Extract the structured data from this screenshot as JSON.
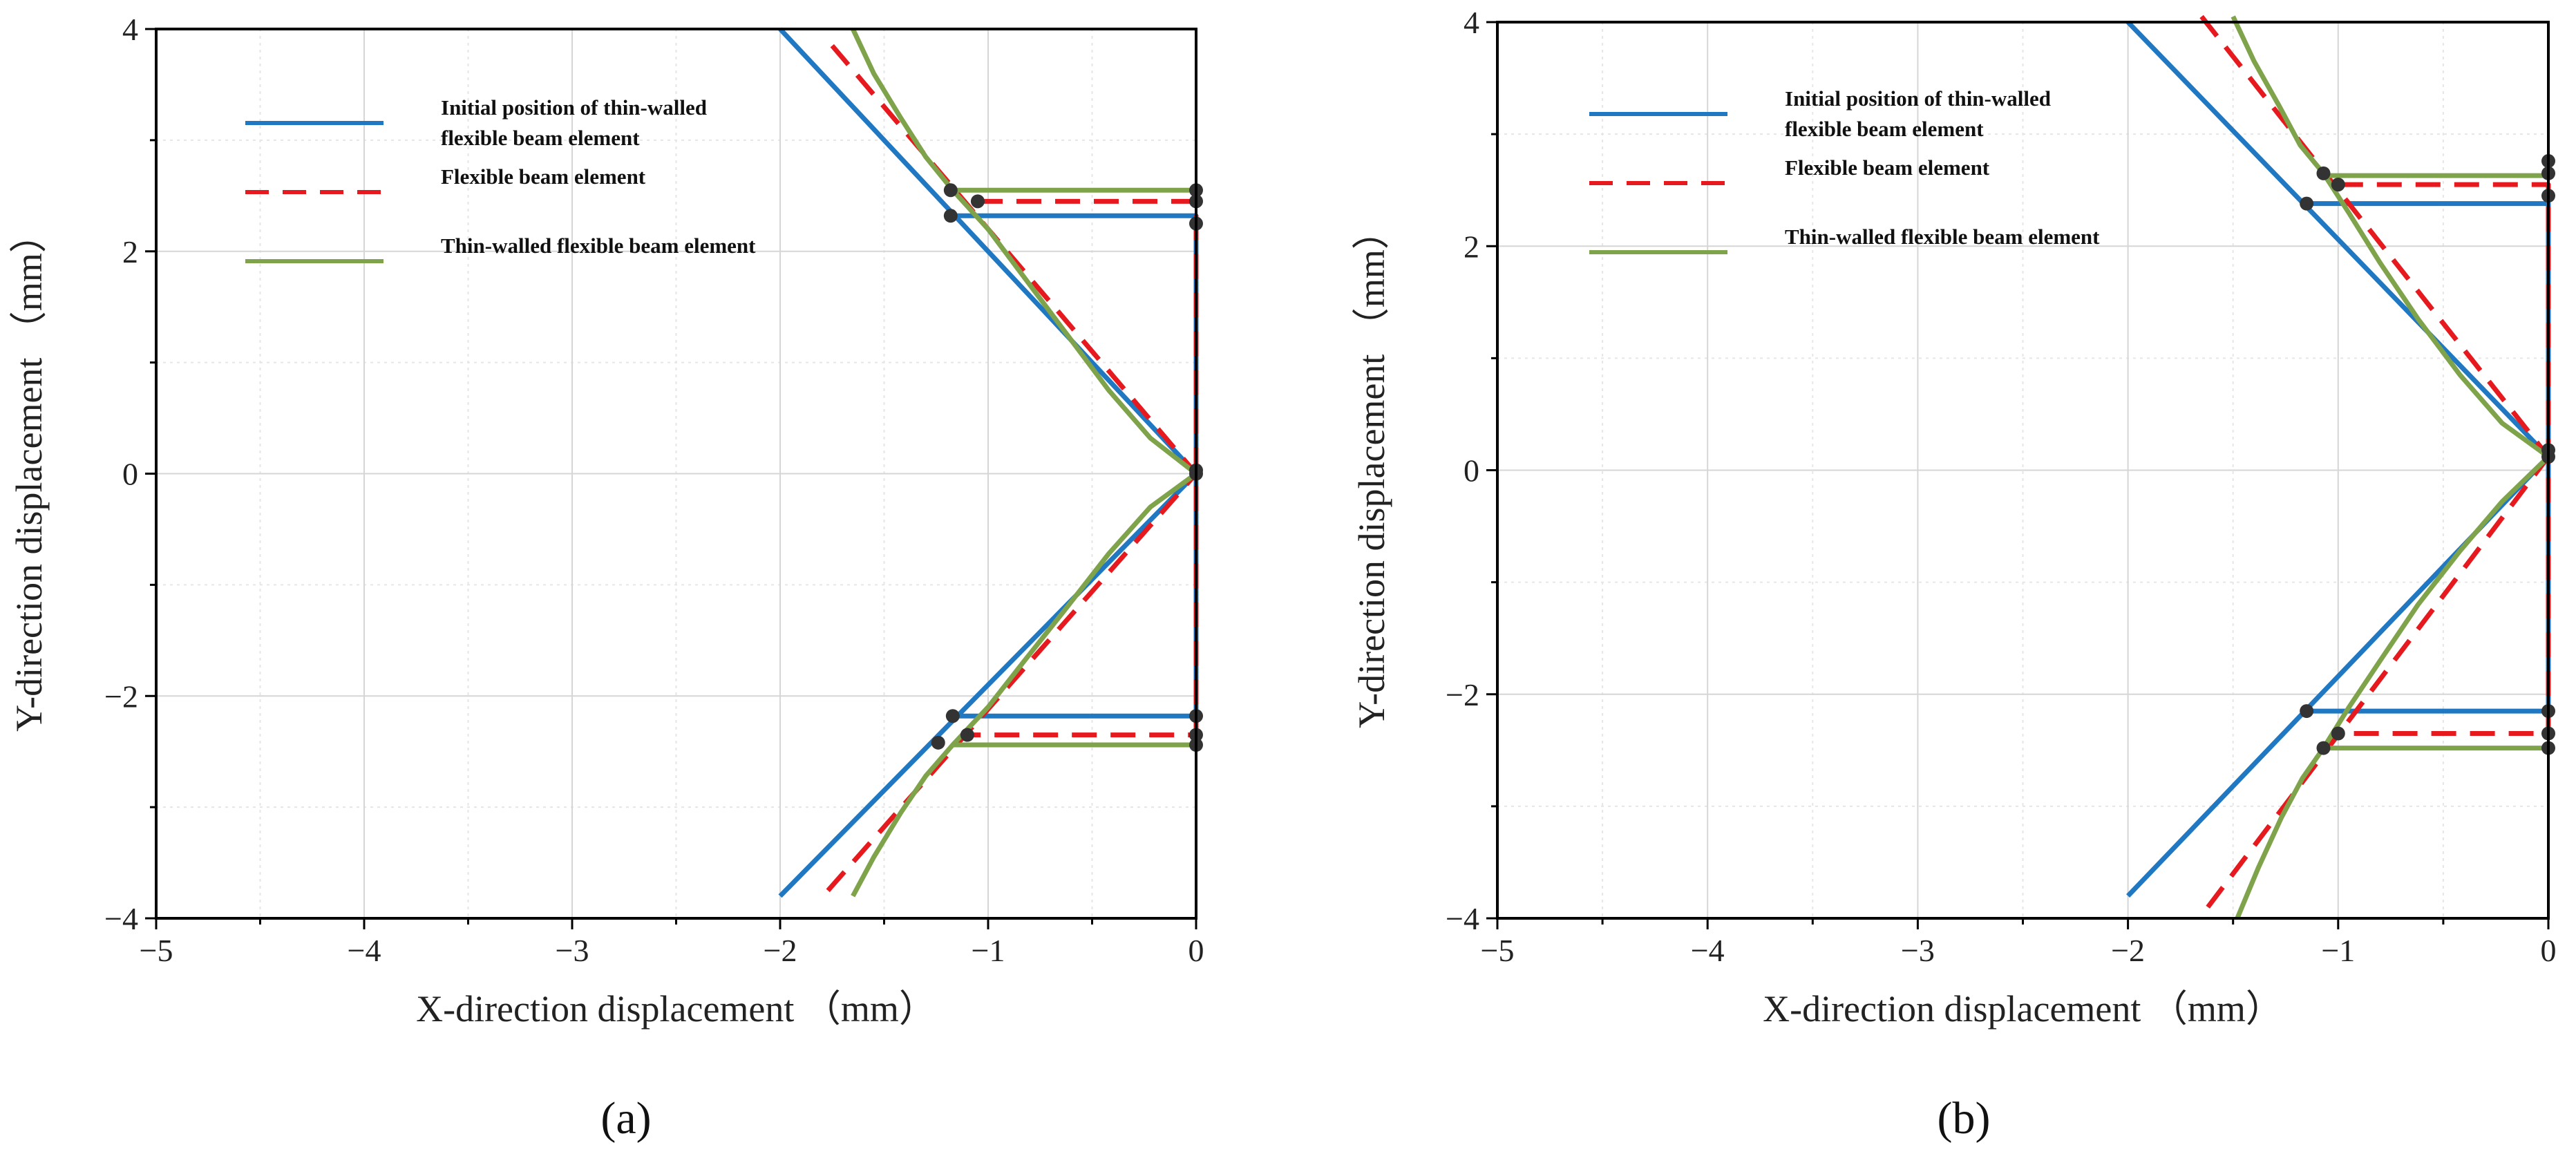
{
  "colors": {
    "initial": "#1f78c1",
    "flexible": "#e5191e",
    "thin_walled": "#7ea34a",
    "node": "#333333",
    "grid": "#d6d6d6",
    "minor_grid": "#e6e6e6",
    "axis": "#000000"
  },
  "chart_data": [
    {
      "type": "line",
      "panel_label": "(a)",
      "xlabel": "X-direction displacement （mm）",
      "ylabel": "Y-direction displacement （mm）",
      "xlim": [
        -5,
        0
      ],
      "ylim": [
        -4,
        4
      ],
      "xticks": [
        -5,
        -4,
        -3,
        -2,
        -1,
        0
      ],
      "yticks": [
        -4,
        -2,
        0,
        2,
        4
      ],
      "xtick_labels": [
        "−5",
        "−4",
        "−3",
        "−2",
        "−1",
        "0"
      ],
      "ytick_labels": [
        "−4",
        "−2",
        "0",
        "2",
        "4"
      ],
      "grid": true,
      "legend_position": "top-left",
      "legend": [
        {
          "key": "initial",
          "lines": [
            "Initial position of thin-walled",
            "flexible beam element"
          ],
          "style": "solid"
        },
        {
          "key": "flexible",
          "lines": [
            "Flexible beam element"
          ],
          "style": "dashed"
        },
        {
          "key": "thin_walled",
          "lines": [
            "Thin-walled flexible beam element"
          ],
          "style": "solid"
        }
      ],
      "series": [
        {
          "name": "Initial position of thin-walled flexible beam element",
          "key": "initial",
          "style": "solid",
          "paths": [
            {
              "x": [
                -2.0,
                0.0
              ],
              "y": [
                4.0,
                0.0
              ]
            },
            {
              "x": [
                -2.0,
                0.0
              ],
              "y": [
                -3.8,
                0.0
              ]
            },
            {
              "x": [
                -1.18,
                0.0,
                0.0,
                -1.18
              ],
              "y": [
                2.32,
                2.32,
                -2.18,
                -2.18
              ]
            }
          ]
        },
        {
          "name": "Flexible beam element",
          "key": "flexible",
          "style": "dashed",
          "paths": [
            {
              "x": [
                -1.75,
                0.0
              ],
              "y": [
                3.85,
                0.0
              ]
            },
            {
              "x": [
                -1.77,
                0.0
              ],
              "y": [
                -3.75,
                0.0
              ]
            },
            {
              "x": [
                -1.05,
                0.0,
                0.0,
                -1.1
              ],
              "y": [
                2.45,
                2.45,
                -2.35,
                -2.35
              ]
            }
          ]
        },
        {
          "name": "Thin-walled flexible beam element",
          "key": "thin_walled",
          "style": "solid",
          "paths": [
            {
              "x": [
                -1.65,
                -1.55,
                -1.42,
                -1.3,
                -1.17,
                -1.0,
                -0.82,
                -0.62,
                -0.42,
                -0.22,
                0.0
              ],
              "y": [
                4.0,
                3.6,
                3.2,
                2.85,
                2.55,
                2.2,
                1.75,
                1.25,
                0.75,
                0.32,
                0.0
              ]
            },
            {
              "x": [
                -1.65,
                -1.55,
                -1.42,
                -1.3,
                -1.17,
                -1.0,
                -0.82,
                -0.62,
                -0.42,
                -0.22,
                0.0
              ],
              "y": [
                -3.8,
                -3.45,
                -3.05,
                -2.72,
                -2.44,
                -2.1,
                -1.67,
                -1.2,
                -0.72,
                -0.3,
                0.0
              ]
            },
            {
              "x": [
                -1.17,
                0.0
              ],
              "y": [
                2.55,
                2.55
              ]
            },
            {
              "x": [
                -1.17,
                0.0
              ],
              "y": [
                -2.44,
                -2.44
              ]
            }
          ]
        }
      ],
      "nodes": {
        "x": [
          -1.18,
          -1.18,
          -1.05,
          -1.1,
          -1.17,
          -1.24,
          0.0,
          0.0,
          0.0,
          0.0,
          0.0,
          0.0,
          0.0,
          0.0
        ],
        "y": [
          2.55,
          2.32,
          2.45,
          -2.35,
          -2.18,
          -2.42,
          2.55,
          2.45,
          2.25,
          0.0,
          -2.18,
          -2.35,
          -2.44,
          0.03
        ]
      }
    },
    {
      "type": "line",
      "panel_label": "(b)",
      "xlabel": "X-direction displacement （mm）",
      "ylabel": "Y-direction displacement （mm）",
      "xlim": [
        -5,
        0
      ],
      "ylim": [
        -4,
        4
      ],
      "xticks": [
        -5,
        -4,
        -3,
        -2,
        -1,
        0
      ],
      "yticks": [
        -4,
        -2,
        0,
        2,
        4
      ],
      "xtick_labels": [
        "−5",
        "−4",
        "−3",
        "−2",
        "−1",
        "0"
      ],
      "ytick_labels": [
        "−4",
        "−2",
        "0",
        "2",
        "4"
      ],
      "grid": true,
      "legend_position": "top-left",
      "legend": [
        {
          "key": "initial",
          "lines": [
            "Initial position of thin-walled",
            "flexible beam element"
          ],
          "style": "solid"
        },
        {
          "key": "flexible",
          "lines": [
            "Flexible beam element"
          ],
          "style": "dashed"
        },
        {
          "key": "thin_walled",
          "lines": [
            "Thin-walled flexible beam element"
          ],
          "style": "solid"
        }
      ],
      "series": [
        {
          "name": "Initial position of thin-walled flexible beam element",
          "key": "initial",
          "style": "solid",
          "paths": [
            {
              "x": [
                -2.0,
                0.0
              ],
              "y": [
                4.0,
                0.12
              ]
            },
            {
              "x": [
                -2.0,
                0.0
              ],
              "y": [
                -3.8,
                0.12
              ]
            },
            {
              "x": [
                -1.15,
                0.0,
                0.0,
                -1.15
              ],
              "y": [
                2.38,
                2.38,
                -2.15,
                -2.15
              ]
            }
          ]
        },
        {
          "name": "Flexible beam element",
          "key": "flexible",
          "style": "dashed",
          "paths": [
            {
              "x": [
                -1.65,
                0.0
              ],
              "y": [
                4.05,
                0.12
              ]
            },
            {
              "x": [
                -1.62,
                0.0
              ],
              "y": [
                -3.9,
                0.12
              ]
            },
            {
              "x": [
                -1.0,
                0.0,
                0.0,
                -1.0
              ],
              "y": [
                2.55,
                2.55,
                -2.35,
                -2.35
              ]
            }
          ]
        },
        {
          "name": "Thin-walled flexible beam element",
          "key": "thin_walled",
          "style": "solid",
          "paths": [
            {
              "x": [
                -1.5,
                -1.4,
                -1.28,
                -1.18,
                -1.07,
                -0.95,
                -0.8,
                -0.62,
                -0.42,
                -0.22,
                0.0
              ],
              "y": [
                4.05,
                3.65,
                3.25,
                2.9,
                2.65,
                2.3,
                1.85,
                1.35,
                0.85,
                0.42,
                0.12
              ]
            },
            {
              "x": [
                -1.48,
                -1.38,
                -1.27,
                -1.17,
                -1.07,
                -0.95,
                -0.8,
                -0.62,
                -0.42,
                -0.22,
                0.0
              ],
              "y": [
                -4.0,
                -3.55,
                -3.1,
                -2.75,
                -2.48,
                -2.12,
                -1.7,
                -1.2,
                -0.72,
                -0.28,
                0.12
              ]
            },
            {
              "x": [
                -1.07,
                0.0
              ],
              "y": [
                2.63,
                2.63
              ]
            },
            {
              "x": [
                -1.07,
                0.0
              ],
              "y": [
                -2.48,
                -2.48
              ]
            }
          ]
        }
      ],
      "nodes": {
        "x": [
          -1.07,
          -1.0,
          -1.15,
          -1.15,
          -1.0,
          -1.07,
          0.0,
          0.0,
          0.0,
          0.0,
          0.0,
          0.0,
          0.0,
          0.0
        ],
        "y": [
          2.65,
          2.55,
          2.38,
          -2.15,
          -2.35,
          -2.48,
          2.76,
          2.65,
          2.45,
          0.12,
          0.18,
          -2.15,
          -2.35,
          -2.48
        ]
      }
    }
  ]
}
